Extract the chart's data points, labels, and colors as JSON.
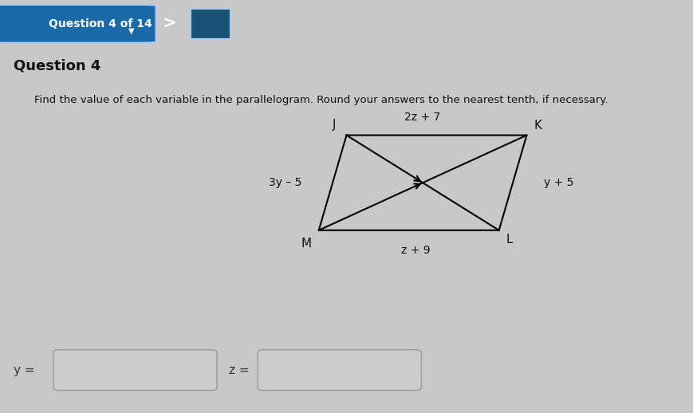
{
  "header_text": "Question 4 of 14",
  "header_bg": "#1a5276",
  "header_btn_bg": "#1a6aaa",
  "header_text_color": "#ffffff",
  "bg_color": "#c8c8c8",
  "question_label": "Question 4",
  "instruction": "Find the value of each variable in the parallelogram. Round your answers to the nearest tenth, if necessary.",
  "label_JK": "2z + 7",
  "label_KL": "y + 5",
  "label_ML": "z + 9",
  "label_JM": "3y – 5",
  "input_label_y": "y =",
  "input_label_z": "z =",
  "answer_box_color": "#cccccc",
  "answer_border_color": "#999999",
  "J": [
    0.5,
    0.76
  ],
  "K": [
    0.76,
    0.76
  ],
  "L": [
    0.72,
    0.5
  ],
  "M": [
    0.46,
    0.5
  ]
}
